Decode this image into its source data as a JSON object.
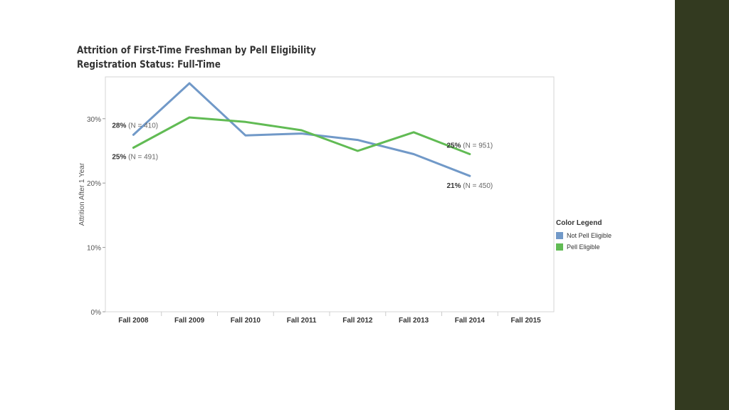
{
  "title": "Attrition of First-Time Freshman by Pell Eligibility",
  "subtitle": "Registration Status: Full-Time",
  "colors": {
    "not_pell": "#7199c8",
    "pell": "#61bb54",
    "sidebar": "#333a20"
  },
  "legend": {
    "title": "Color Legend",
    "items": [
      {
        "label": "Not Pell Eligible",
        "color": "#7199c8"
      },
      {
        "label": "Pell Eligible",
        "color": "#61bb54"
      }
    ]
  },
  "chart_data": {
    "type": "line",
    "title": "Attrition of First-Time Freshman by Pell Eligibility",
    "subtitle": "Registration Status: Full-Time",
    "ylabel": "Attrition After 1 Year",
    "xlabel": "",
    "categories": [
      "Fall 2008",
      "Fall 2009",
      "Fall 2010",
      "Fall 2011",
      "Fall 2012",
      "Fall 2013",
      "Fall 2014",
      "Fall 2015"
    ],
    "yticks": [
      "0%",
      "10%",
      "20%",
      "30%"
    ],
    "ylim": [
      0,
      0.365
    ],
    "series": [
      {
        "name": "Not Pell Eligible",
        "values": [
          0.275,
          0.355,
          0.274,
          0.277,
          0.267,
          0.245,
          0.211,
          null
        ]
      },
      {
        "name": "Pell Eligible",
        "values": [
          0.255,
          0.302,
          0.295,
          0.282,
          0.25,
          0.279,
          0.245,
          null
        ]
      }
    ],
    "annotations": [
      {
        "series": 0,
        "index": 0,
        "pct": "28%",
        "n": "(N = 410)",
        "side": "above-left"
      },
      {
        "series": 1,
        "index": 0,
        "pct": "25%",
        "n": "(N = 491)",
        "side": "below-left"
      },
      {
        "series": 1,
        "index": 6,
        "pct": "25%",
        "n": "(N = 951)",
        "side": "above"
      },
      {
        "series": 0,
        "index": 6,
        "pct": "21%",
        "n": "(N = 450)",
        "side": "below"
      }
    ]
  }
}
